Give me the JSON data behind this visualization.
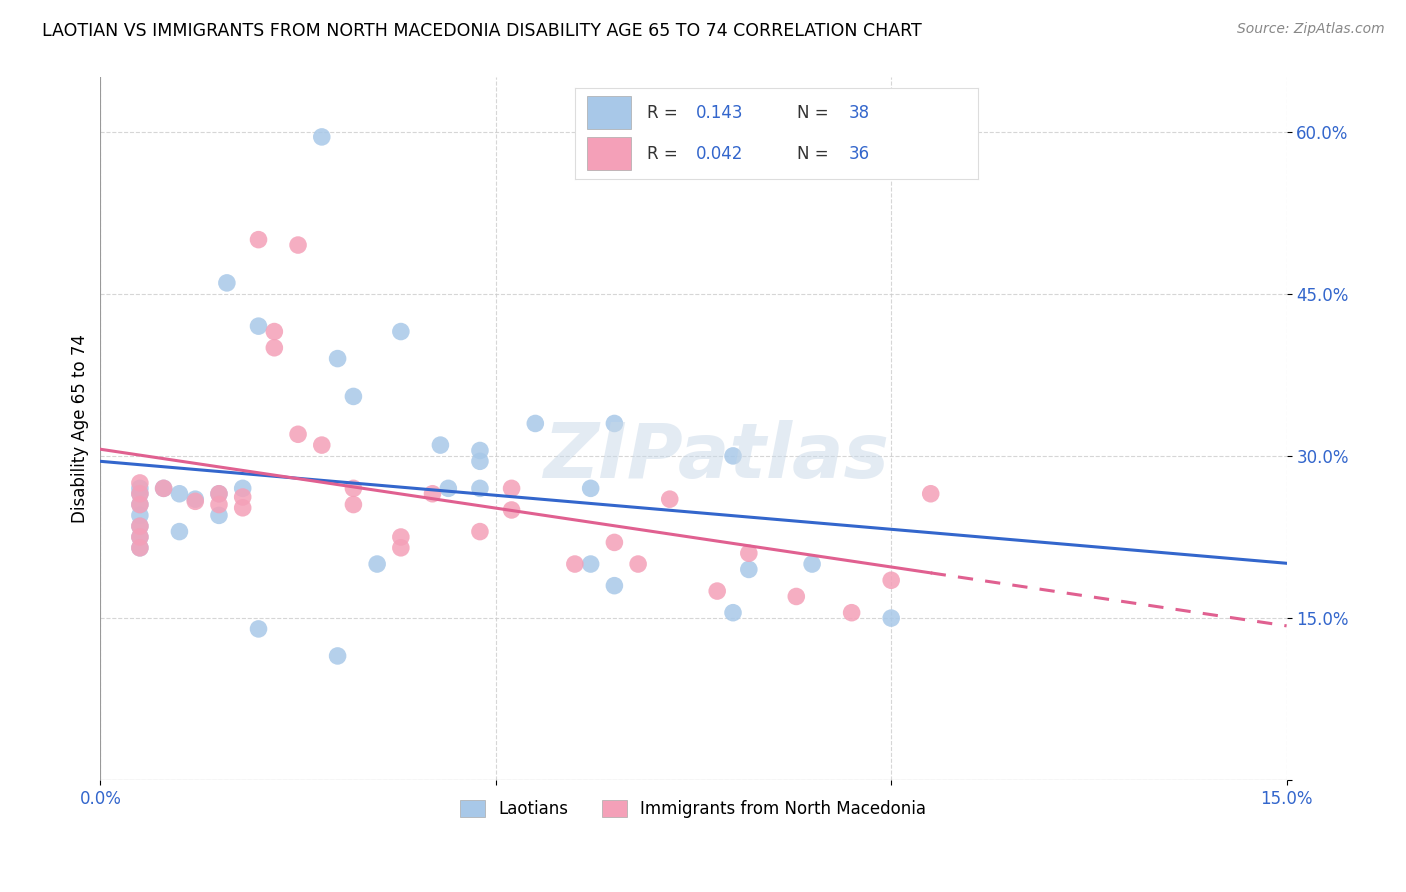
{
  "title": "LAOTIAN VS IMMIGRANTS FROM NORTH MACEDONIA DISABILITY AGE 65 TO 74 CORRELATION CHART",
  "source": "Source: ZipAtlas.com",
  "ylabel": "Disability Age 65 to 74",
  "x_min": 0.0,
  "x_max": 0.15,
  "y_min": 0.0,
  "y_max": 0.65,
  "blue_color": "#a8c8e8",
  "pink_color": "#f4a0b8",
  "blue_line_color": "#3366cc",
  "pink_line_color": "#e06090",
  "R_blue": 0.143,
  "N_blue": 38,
  "R_pink": 0.042,
  "N_pink": 36,
  "legend_text_color": "#3366cc",
  "watermark": "ZIPatlas",
  "blue_points_x": [
    0.028,
    0.016,
    0.02,
    0.03,
    0.038,
    0.032,
    0.044,
    0.005,
    0.005,
    0.005,
    0.005,
    0.008,
    0.01,
    0.012,
    0.015,
    0.015,
    0.018,
    0.01,
    0.005,
    0.005,
    0.005,
    0.043,
    0.048,
    0.048,
    0.055,
    0.048,
    0.062,
    0.08,
    0.082,
    0.062,
    0.02,
    0.03,
    0.035,
    0.065,
    0.08,
    0.09,
    0.1,
    0.065
  ],
  "blue_points_y": [
    0.595,
    0.46,
    0.42,
    0.39,
    0.415,
    0.355,
    0.27,
    0.27,
    0.265,
    0.255,
    0.245,
    0.27,
    0.265,
    0.26,
    0.265,
    0.245,
    0.27,
    0.23,
    0.235,
    0.225,
    0.215,
    0.31,
    0.305,
    0.27,
    0.33,
    0.295,
    0.27,
    0.3,
    0.195,
    0.2,
    0.14,
    0.115,
    0.2,
    0.18,
    0.155,
    0.2,
    0.15,
    0.33
  ],
  "pink_points_x": [
    0.02,
    0.025,
    0.005,
    0.005,
    0.005,
    0.005,
    0.005,
    0.005,
    0.008,
    0.012,
    0.015,
    0.015,
    0.018,
    0.018,
    0.022,
    0.022,
    0.025,
    0.028,
    0.032,
    0.032,
    0.038,
    0.038,
    0.042,
    0.048,
    0.052,
    0.052,
    0.06,
    0.065,
    0.068,
    0.072,
    0.078,
    0.082,
    0.088,
    0.095,
    0.1,
    0.105
  ],
  "pink_points_y": [
    0.5,
    0.495,
    0.275,
    0.265,
    0.255,
    0.235,
    0.225,
    0.215,
    0.27,
    0.258,
    0.265,
    0.255,
    0.262,
    0.252,
    0.415,
    0.4,
    0.32,
    0.31,
    0.27,
    0.255,
    0.225,
    0.215,
    0.265,
    0.23,
    0.27,
    0.25,
    0.2,
    0.22,
    0.2,
    0.26,
    0.175,
    0.21,
    0.17,
    0.155,
    0.185,
    0.265
  ]
}
